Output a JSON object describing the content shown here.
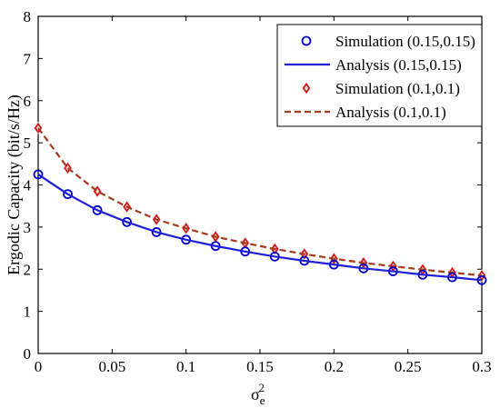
{
  "chart_data": {
    "type": "line",
    "xlabel": "σ",
    "xlabel_sub": "e",
    "xlabel_sup": "2",
    "ylabel": "Ergodic Capacity (bit/s/Hz)",
    "xlim": [
      0,
      0.3
    ],
    "ylim": [
      0,
      8
    ],
    "xticks": [
      0,
      0.05,
      0.1,
      0.15,
      0.2,
      0.25,
      0.3
    ],
    "xtick_labels": [
      "0",
      "0.05",
      "0.1",
      "0.15",
      "0.2",
      "0.25",
      "0.3"
    ],
    "yticks": [
      0,
      1,
      2,
      3,
      4,
      5,
      6,
      7,
      8
    ],
    "ytick_labels": [
      "0",
      "1",
      "2",
      "3",
      "4",
      "5",
      "6",
      "7",
      "8"
    ],
    "grid": false,
    "legend_position": "top-right",
    "x": [
      0,
      0.02,
      0.04,
      0.06,
      0.08,
      0.1,
      0.12,
      0.14,
      0.16,
      0.18,
      0.2,
      0.22,
      0.24,
      0.26,
      0.28,
      0.3
    ],
    "series": [
      {
        "name": "Simulation (0.15,0.15)",
        "style": "markers",
        "marker": "circle",
        "color": "#0000cc",
        "values": [
          4.25,
          3.78,
          3.4,
          3.12,
          2.88,
          2.7,
          2.55,
          2.42,
          2.3,
          2.2,
          2.11,
          2.02,
          1.95,
          1.87,
          1.81,
          1.74
        ]
      },
      {
        "name": "Analysis (0.15,0.15)",
        "style": "solid",
        "color": "#1f1fd6",
        "values": [
          4.25,
          3.78,
          3.4,
          3.12,
          2.88,
          2.7,
          2.55,
          2.42,
          2.3,
          2.2,
          2.11,
          2.02,
          1.95,
          1.87,
          1.81,
          1.74
        ]
      },
      {
        "name": "Simulation (0.1,0.1)",
        "style": "markers",
        "marker": "diamond",
        "color": "#cc1111",
        "fill": "#f4d6d6",
        "values": [
          5.35,
          4.4,
          3.85,
          3.48,
          3.18,
          2.97,
          2.77,
          2.62,
          2.48,
          2.36,
          2.25,
          2.15,
          2.07,
          1.99,
          1.92,
          1.85
        ]
      },
      {
        "name": "Analysis (0.1,0.1)",
        "style": "dashed",
        "color": "#a33a1a",
        "values": [
          5.35,
          4.4,
          3.85,
          3.48,
          3.18,
          2.97,
          2.77,
          2.62,
          2.48,
          2.36,
          2.25,
          2.15,
          2.07,
          1.99,
          1.92,
          1.85
        ]
      }
    ]
  }
}
